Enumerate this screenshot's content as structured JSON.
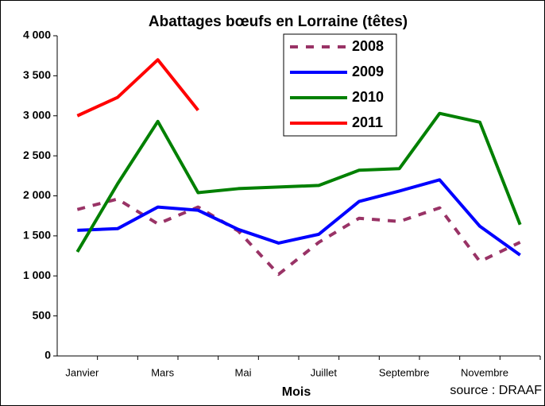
{
  "chart_data": {
    "type": "line",
    "title": "Abattages bœufs en Lorraine (têtes)",
    "x_label": "Mois",
    "annotation": "source : DRAAF",
    "categories": [
      "Janvier",
      null,
      "Mars",
      null,
      "Mai",
      null,
      "Juillet",
      null,
      "Septembre",
      null,
      "Novembre",
      null
    ],
    "series": [
      {
        "name": "2008",
        "color": "#993366",
        "dashed": true,
        "values": [
          1830,
          1960,
          1650,
          1860,
          1560,
          1020,
          1420,
          1720,
          1680,
          1850,
          1180,
          1420
        ]
      },
      {
        "name": "2009",
        "color": "#0000ff",
        "dashed": false,
        "values": [
          1570,
          1590,
          1860,
          1820,
          1580,
          1410,
          1520,
          1930,
          2060,
          2200,
          1620,
          1260
        ]
      },
      {
        "name": "2010",
        "color": "#008000",
        "dashed": false,
        "values": [
          1300,
          2150,
          2930,
          2040,
          2090,
          2110,
          2130,
          2320,
          2340,
          3030,
          2920,
          1640
        ]
      },
      {
        "name": "2011",
        "color": "#ff0000",
        "dashed": false,
        "values": [
          3000,
          3230,
          3700,
          3070,
          null,
          null,
          null,
          null,
          null,
          null,
          null,
          null
        ]
      }
    ],
    "ylim": [
      0,
      4000
    ],
    "yticks": [
      0,
      500,
      {
        "value": 1000,
        "label": "1 000"
      },
      {
        "value": 1500,
        "label": "1 500"
      },
      {
        "value": 2000,
        "label": "2 000"
      },
      {
        "value": 2500,
        "label": "2 500"
      },
      {
        "value": 3000,
        "label": "3 000"
      },
      {
        "value": 3500,
        "label": "3 500"
      },
      {
        "value": 4000,
        "label": "4 000"
      }
    ],
    "legend": "top"
  }
}
